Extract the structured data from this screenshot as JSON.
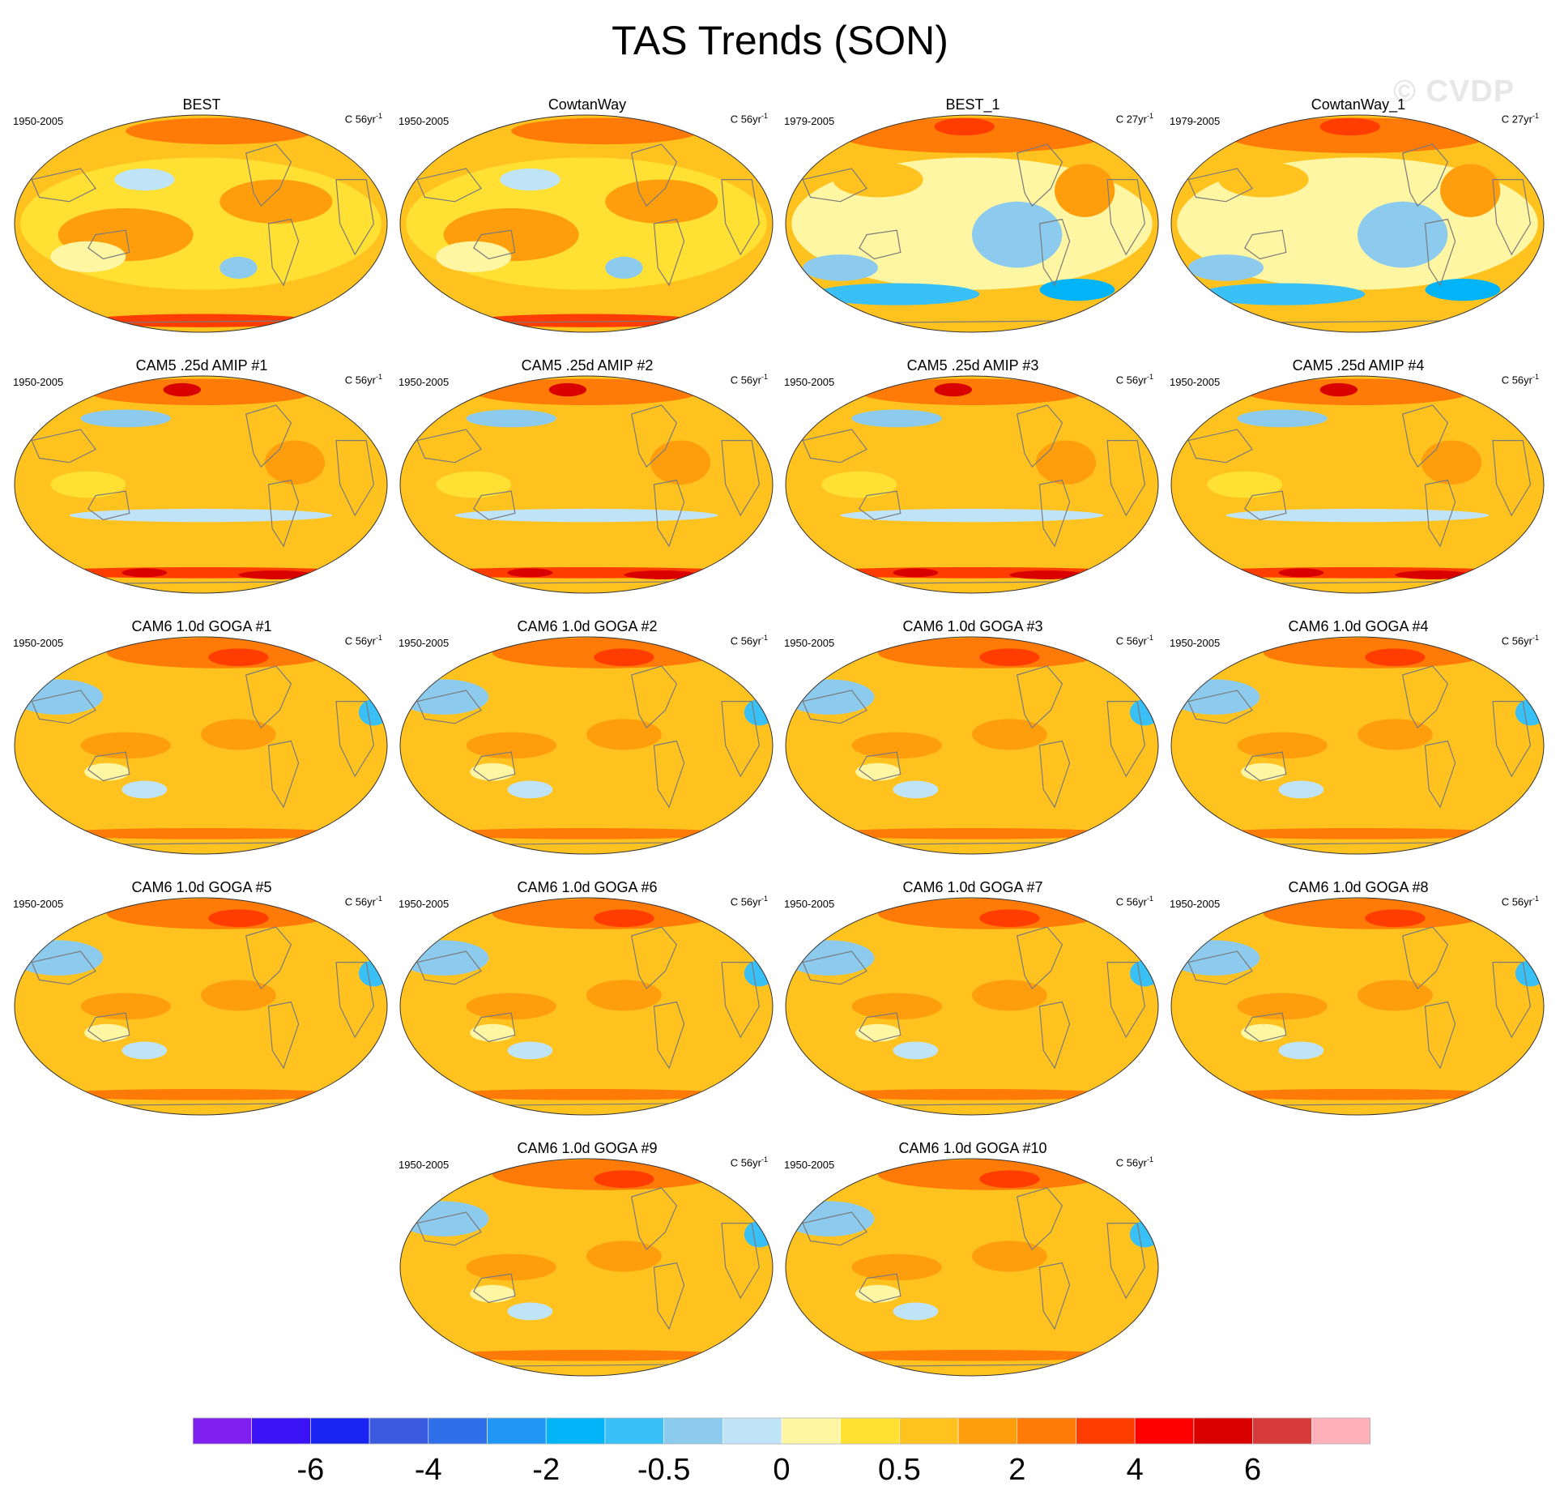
{
  "title": "TAS Trends (SON)",
  "watermark": "© CVDP",
  "panels": [
    {
      "title": "BEST",
      "years": "1950-2005",
      "units": "C 56yr",
      "pattern": "obs-long"
    },
    {
      "title": "CowtanWay",
      "years": "1950-2005",
      "units": "C 56yr",
      "pattern": "obs-long"
    },
    {
      "title": "BEST_1",
      "years": "1979-2005",
      "units": "C 27yr",
      "pattern": "obs-short"
    },
    {
      "title": "CowtanWay_1",
      "years": "1979-2005",
      "units": "C 27yr",
      "pattern": "obs-short"
    },
    {
      "title": "CAM5 .25d AMIP #1",
      "years": "1950-2005",
      "units": "C 56yr",
      "pattern": "amip"
    },
    {
      "title": "CAM5 .25d AMIP #2",
      "years": "1950-2005",
      "units": "C 56yr",
      "pattern": "amip"
    },
    {
      "title": "CAM5 .25d AMIP #3",
      "years": "1950-2005",
      "units": "C 56yr",
      "pattern": "amip"
    },
    {
      "title": "CAM5 .25d AMIP #4",
      "years": "1950-2005",
      "units": "C 56yr",
      "pattern": "amip"
    },
    {
      "title": "CAM6 1.0d GOGA #1",
      "years": "1950-2005",
      "units": "C 56yr",
      "pattern": "goga"
    },
    {
      "title": "CAM6 1.0d GOGA #2",
      "years": "1950-2005",
      "units": "C 56yr",
      "pattern": "goga"
    },
    {
      "title": "CAM6 1.0d GOGA #3",
      "years": "1950-2005",
      "units": "C 56yr",
      "pattern": "goga"
    },
    {
      "title": "CAM6 1.0d GOGA #4",
      "years": "1950-2005",
      "units": "C 56yr",
      "pattern": "goga"
    },
    {
      "title": "CAM6 1.0d GOGA #5",
      "years": "1950-2005",
      "units": "C 56yr",
      "pattern": "goga"
    },
    {
      "title": "CAM6 1.0d GOGA #6",
      "years": "1950-2005",
      "units": "C 56yr",
      "pattern": "goga"
    },
    {
      "title": "CAM6 1.0d GOGA #7",
      "years": "1950-2005",
      "units": "C 56yr",
      "pattern": "goga"
    },
    {
      "title": "CAM6 1.0d GOGA #8",
      "years": "1950-2005",
      "units": "C 56yr",
      "pattern": "goga"
    },
    {
      "title": "CAM6 1.0d GOGA #9",
      "years": "1950-2005",
      "units": "C 56yr",
      "pattern": "goga"
    },
    {
      "title": "CAM6 1.0d GOGA #10",
      "years": "1950-2005",
      "units": "C 56yr",
      "pattern": "goga"
    }
  ],
  "colorbar": {
    "colors": [
      "#7f1ff0",
      "#3a12f5",
      "#1a24f0",
      "#3a5be0",
      "#2f6fea",
      "#2196f3",
      "#00b4f7",
      "#38c0f7",
      "#8ccbee",
      "#bfe3f7",
      "#fff6a3",
      "#ffe033",
      "#ffc21f",
      "#ff9e0d",
      "#ff7a06",
      "#ff3d00",
      "#ff0000",
      "#d90000",
      "#d63a3a",
      "#ffb0b8"
    ],
    "labels": [
      {
        "text": "-6",
        "after": 1
      },
      {
        "text": "-4",
        "after": 3
      },
      {
        "text": "-2",
        "after": 5
      },
      {
        "text": "-0.5",
        "after": 7
      },
      {
        "text": "0",
        "after": 9
      },
      {
        "text": "0.5",
        "after": 11
      },
      {
        "text": "2",
        "after": 13
      },
      {
        "text": "4",
        "after": 15
      },
      {
        "text": "6",
        "after": 17
      }
    ]
  }
}
